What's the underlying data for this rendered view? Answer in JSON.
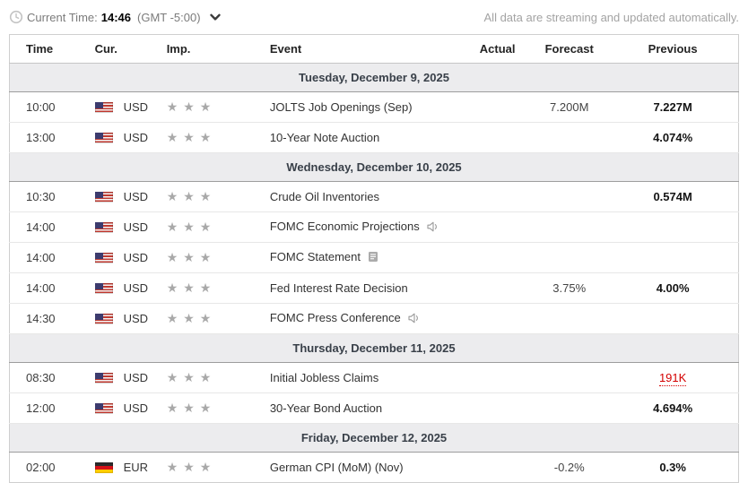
{
  "topbar": {
    "current_time_label": "Current Time:",
    "current_time": "14:46",
    "timezone": "(GMT -5:00)",
    "streaming_note": "All data are streaming and updated automatically."
  },
  "colors": {
    "alert_red": "#d40000",
    "star_gray": "#a9a9a9",
    "section_header_bg": "#ececee",
    "section_header_text": "#394049",
    "table_border": "#cfcfcf"
  },
  "table": {
    "columns": [
      "Time",
      "Cur.",
      "Imp.",
      "Event",
      "Actual",
      "Forecast",
      "Previous"
    ],
    "sections": [
      {
        "date": "Tuesday, December 9, 2025",
        "rows": [
          {
            "time": "10:00",
            "flag": "us",
            "currency": "USD",
            "importance": 3,
            "event": "JOLTS Job Openings (Sep)",
            "icon": "",
            "actual": "",
            "forecast": "7.200M",
            "previous": "7.227M",
            "previous_alert": false
          },
          {
            "time": "13:00",
            "flag": "us",
            "currency": "USD",
            "importance": 3,
            "event": "10-Year Note Auction",
            "icon": "",
            "actual": "",
            "forecast": "",
            "previous": "4.074%",
            "previous_alert": false
          }
        ]
      },
      {
        "date": "Wednesday, December 10, 2025",
        "rows": [
          {
            "time": "10:30",
            "flag": "us",
            "currency": "USD",
            "importance": 3,
            "event": "Crude Oil Inventories",
            "icon": "",
            "actual": "",
            "forecast": "",
            "previous": "0.574M",
            "previous_alert": false
          },
          {
            "time": "14:00",
            "flag": "us",
            "currency": "USD",
            "importance": 3,
            "event": "FOMC Economic Projections",
            "icon": "speaker",
            "actual": "",
            "forecast": "",
            "previous": "",
            "previous_alert": false
          },
          {
            "time": "14:00",
            "flag": "us",
            "currency": "USD",
            "importance": 3,
            "event": "FOMC Statement",
            "icon": "report",
            "actual": "",
            "forecast": "",
            "previous": "",
            "previous_alert": false
          },
          {
            "time": "14:00",
            "flag": "us",
            "currency": "USD",
            "importance": 3,
            "event": "Fed Interest Rate Decision",
            "icon": "",
            "actual": "",
            "forecast": "3.75%",
            "previous": "4.00%",
            "previous_alert": false
          },
          {
            "time": "14:30",
            "flag": "us",
            "currency": "USD",
            "importance": 3,
            "event": "FOMC Press Conference",
            "icon": "speaker",
            "actual": "",
            "forecast": "",
            "previous": "",
            "previous_alert": false
          }
        ]
      },
      {
        "date": "Thursday, December 11, 2025",
        "rows": [
          {
            "time": "08:30",
            "flag": "us",
            "currency": "USD",
            "importance": 3,
            "event": "Initial Jobless Claims",
            "icon": "",
            "actual": "",
            "forecast": "",
            "previous": "191K",
            "previous_alert": true
          },
          {
            "time": "12:00",
            "flag": "us",
            "currency": "USD",
            "importance": 3,
            "event": "30-Year Bond Auction",
            "icon": "",
            "actual": "",
            "forecast": "",
            "previous": "4.694%",
            "previous_alert": false
          }
        ]
      },
      {
        "date": "Friday, December 12, 2025",
        "rows": [
          {
            "time": "02:00",
            "flag": "de",
            "currency": "EUR",
            "importance": 3,
            "event": "German CPI (MoM) (Nov)",
            "icon": "",
            "actual": "",
            "forecast": "-0.2%",
            "previous": "0.3%",
            "previous_alert": false
          }
        ]
      }
    ]
  }
}
